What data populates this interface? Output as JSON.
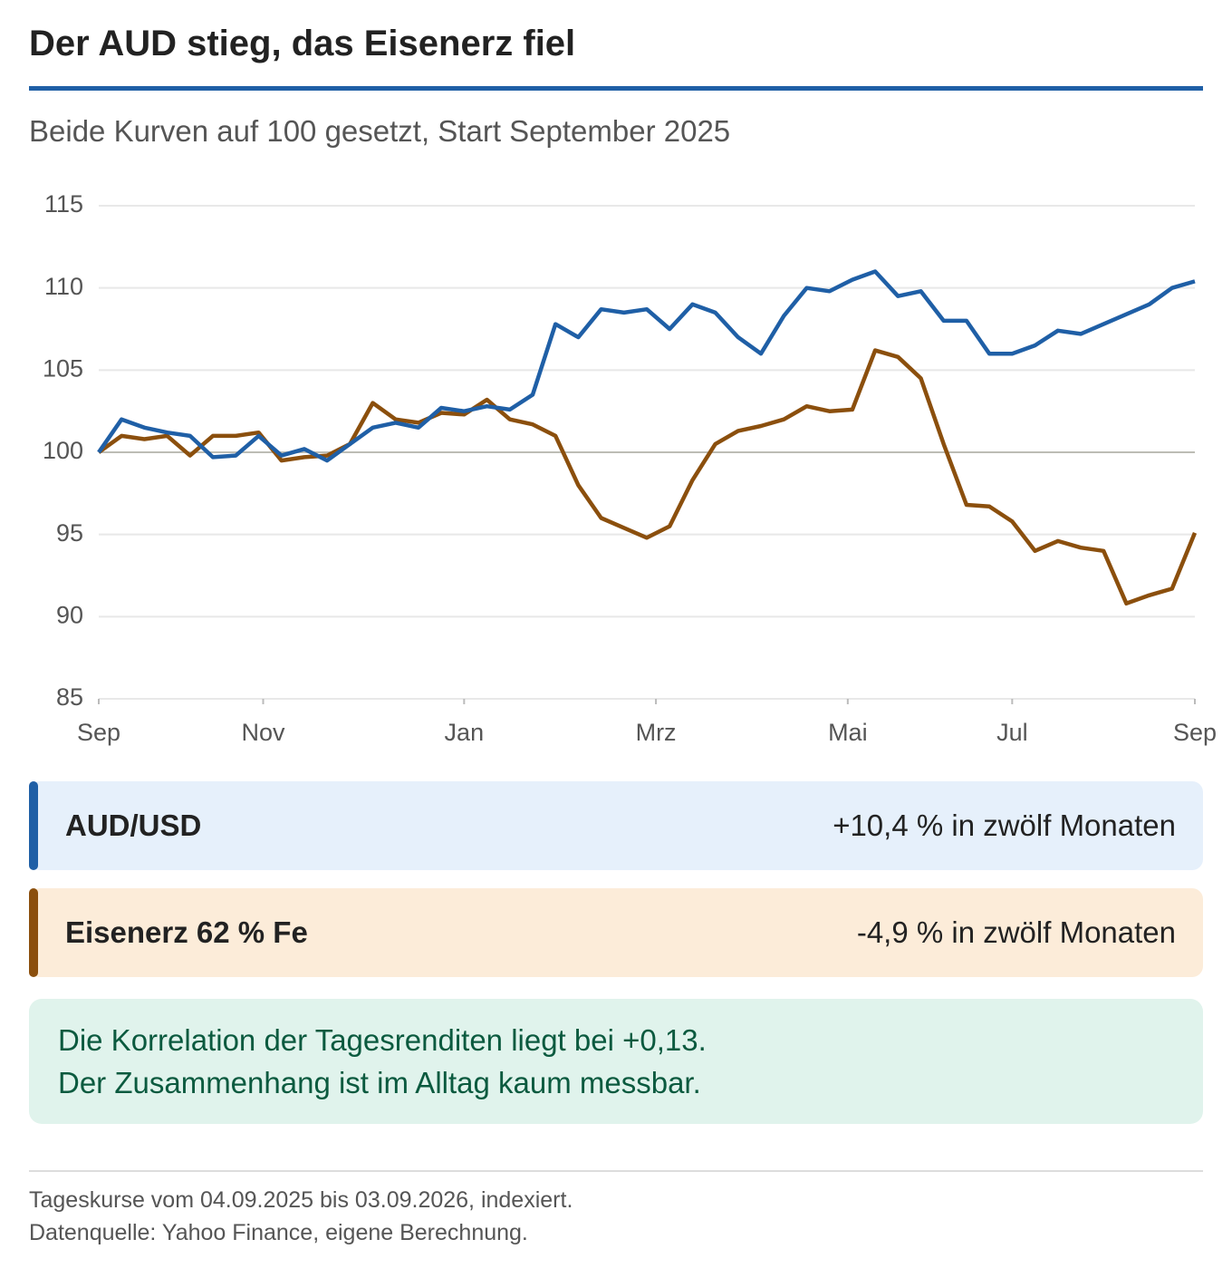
{
  "chart_data": {
    "type": "line",
    "title": "Der AUD stieg, das Eisenerz fiel",
    "subtitle": "Beide Kurven auf 100 gesetzt, Start September 2025",
    "x": [
      0,
      0.25,
      0.5,
      0.75,
      1,
      1.25,
      1.5,
      1.75,
      2,
      2.25,
      2.5,
      2.75,
      3,
      3.25,
      3.5,
      3.75,
      4,
      4.25,
      4.5,
      4.75,
      5,
      5.25,
      5.5,
      5.75,
      6,
      6.25,
      6.5,
      6.75,
      7,
      7.25,
      7.5,
      7.75,
      8,
      8.25,
      8.5,
      8.75,
      9,
      9.25,
      9.5,
      9.75,
      10,
      10.25,
      10.5,
      10.75,
      11,
      11.25,
      11.5,
      11.75,
      12
    ],
    "series": [
      {
        "name": "AUD/USD",
        "color": "#1f5fa6",
        "values": [
          100,
          102,
          101.5,
          101.2,
          101,
          99.7,
          99.8,
          101,
          99.8,
          100.2,
          99.5,
          100.5,
          101.5,
          101.8,
          101.5,
          102.7,
          102.5,
          102.8,
          102.6,
          103.5,
          107.8,
          107,
          108.7,
          108.5,
          108.7,
          107.5,
          109,
          108.5,
          107,
          106,
          108.3,
          110,
          109.8,
          110.5,
          111,
          109.5,
          109.8,
          108,
          108,
          106,
          106,
          106.5,
          107.4,
          107.2,
          107.8,
          108.4,
          109,
          110,
          110.4
        ]
      },
      {
        "name": "Eisenerz 62 % Fe",
        "color": "#8b4f0d",
        "values": [
          100,
          101,
          100.8,
          101,
          99.8,
          101,
          101,
          101.2,
          99.5,
          99.7,
          99.8,
          100.5,
          103,
          102,
          101.8,
          102.4,
          102.3,
          103.2,
          102,
          101.7,
          101,
          98,
          96,
          95.4,
          94.8,
          95.5,
          98.3,
          100.5,
          101.3,
          101.6,
          102,
          102.8,
          102.5,
          102.6,
          106.2,
          105.8,
          104.5,
          100.5,
          96.8,
          96.7,
          95.8,
          94,
          94.6,
          94.2,
          94,
          90.8,
          91.3,
          91.7,
          95.1
        ]
      }
    ],
    "xlim": [
      0,
      12
    ],
    "xticks": [
      {
        "value": 0,
        "label": "Sep"
      },
      {
        "value": 1.8,
        "label": "Nov"
      },
      {
        "value": 4.0,
        "label": "Jan"
      },
      {
        "value": 6.1,
        "label": "Mrz"
      },
      {
        "value": 8.2,
        "label": "Mai"
      },
      {
        "value": 10.0,
        "label": "Jul"
      },
      {
        "value": 12,
        "label": "Sep"
      }
    ],
    "ylim": [
      85,
      115
    ],
    "yticks": [
      85,
      90,
      95,
      100,
      105,
      110,
      115
    ],
    "grid": true,
    "reference_line": 100,
    "cards": [
      {
        "label": "AUD/USD",
        "text": "+10,4 % in zwölf Monaten"
      },
      {
        "label": "Eisenerz 62 % Fe",
        "text": "-4,9 % in zwölf Monaten"
      }
    ],
    "note": [
      "Die Korrelation der Tagesrenditen liegt bei +0,13.",
      "Der Zusammenhang ist im Alltag kaum messbar."
    ],
    "footer": [
      "Tageskurse vom 04.09.2025 bis 03.09.2026, indexiert.",
      "Datenquelle: Yahoo Finance, eigene Berechnung."
    ]
  }
}
